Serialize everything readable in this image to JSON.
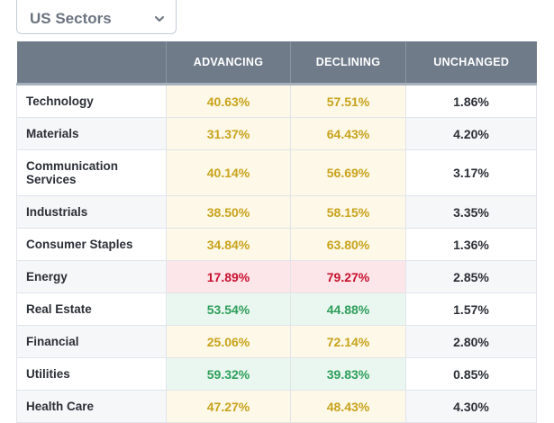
{
  "dropdown": {
    "selected": "US Sectors",
    "icon": "chevron-down-icon"
  },
  "table": {
    "headers": [
      "",
      "ADVANCING",
      "DECLINING",
      "UNCHANGED"
    ],
    "rows": [
      {
        "sector": "Technology",
        "advancing": "40.63%",
        "declining": "57.51%",
        "unchanged": "1.86%",
        "color": "yellow"
      },
      {
        "sector": "Materials",
        "advancing": "31.37%",
        "declining": "64.43%",
        "unchanged": "4.20%",
        "color": "yellow"
      },
      {
        "sector": "Communication Services",
        "advancing": "40.14%",
        "declining": "56.69%",
        "unchanged": "3.17%",
        "color": "yellow"
      },
      {
        "sector": "Industrials",
        "advancing": "38.50%",
        "declining": "58.15%",
        "unchanged": "3.35%",
        "color": "yellow"
      },
      {
        "sector": "Consumer Staples",
        "advancing": "34.84%",
        "declining": "63.80%",
        "unchanged": "1.36%",
        "color": "yellow"
      },
      {
        "sector": "Energy",
        "advancing": "17.89%",
        "declining": "79.27%",
        "unchanged": "2.85%",
        "color": "red"
      },
      {
        "sector": "Real Estate",
        "advancing": "53.54%",
        "declining": "44.88%",
        "unchanged": "1.57%",
        "color": "green"
      },
      {
        "sector": "Financial",
        "advancing": "25.06%",
        "declining": "72.14%",
        "unchanged": "2.80%",
        "color": "yellow"
      },
      {
        "sector": "Utilities",
        "advancing": "59.32%",
        "declining": "39.83%",
        "unchanged": "0.85%",
        "color": "green"
      },
      {
        "sector": "Health Care",
        "advancing": "47.27%",
        "declining": "48.43%",
        "unchanged": "4.30%",
        "color": "yellow"
      }
    ]
  },
  "colors": {
    "header_bg": "#6f7b89",
    "yellow_text": "#c9a31c",
    "red_text": "#c8102e",
    "green_text": "#2e9e5b"
  }
}
